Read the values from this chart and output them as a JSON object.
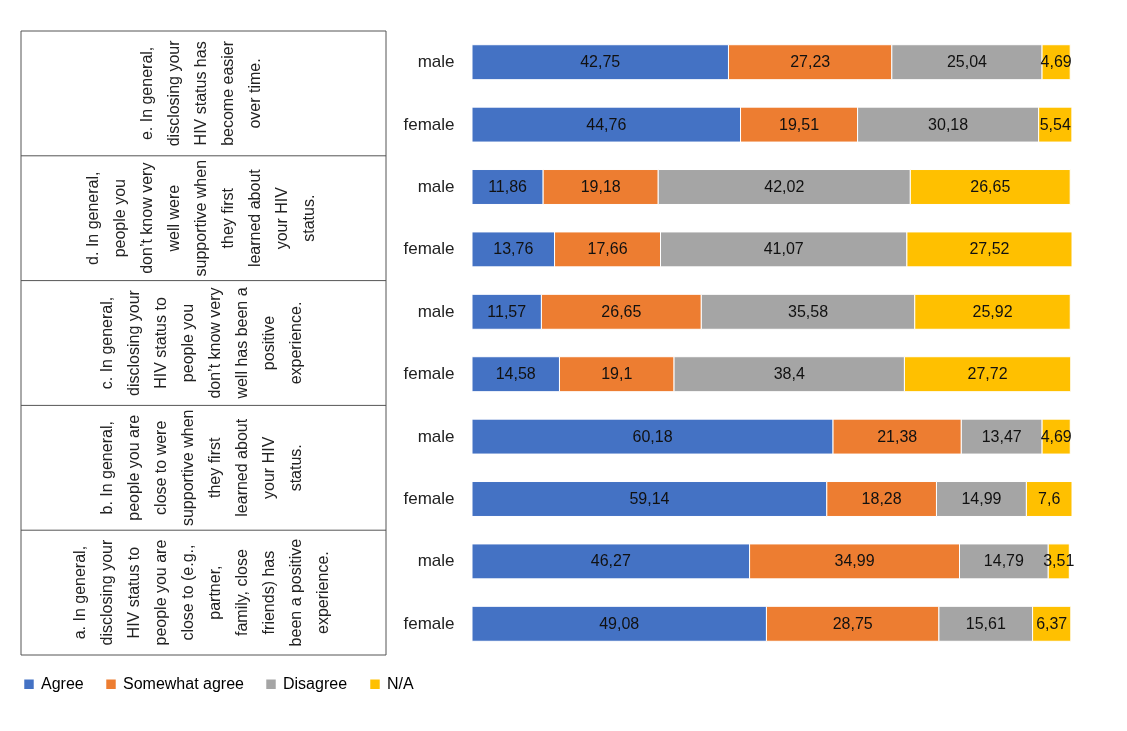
{
  "chart_data": {
    "type": "bar",
    "orientation": "horizontal",
    "stacked": true,
    "legend": "bottom",
    "categories": [
      "male",
      "female",
      "male",
      "female",
      "male",
      "female",
      "male",
      "female",
      "male",
      "female"
    ],
    "series": [
      {
        "name": "Agree",
        "color": "#4472c4",
        "values": [
          42.75,
          44.76,
          11.86,
          13.76,
          11.57,
          14.58,
          60.18,
          59.14,
          46.27,
          49.08
        ],
        "value_labels": [
          "42,75",
          "44,76",
          "11,86",
          "13,76",
          "11,57",
          "14,58",
          "60,18",
          "59,14",
          "46,27",
          "49,08"
        ]
      },
      {
        "name": "Somewhat agree",
        "color": "#ed7d31",
        "values": [
          27.23,
          19.51,
          19.18,
          17.66,
          26.65,
          19.1,
          21.38,
          18.28,
          34.99,
          28.75
        ],
        "value_labels": [
          "27,23",
          "19,51",
          "19,18",
          "17,66",
          "26,65",
          "19,1",
          "21,38",
          "18,28",
          "34,99",
          "28,75"
        ]
      },
      {
        "name": "Disagree",
        "color": "#a5a5a5",
        "values": [
          25.04,
          30.18,
          42.02,
          41.07,
          35.58,
          38.4,
          13.47,
          14.99,
          14.79,
          15.61
        ],
        "value_labels": [
          "25,04",
          "30,18",
          "42,02",
          "41,07",
          "35,58",
          "38,4",
          "13,47",
          "14,99",
          "14,79",
          "15,61"
        ]
      },
      {
        "name": "N/A",
        "color": "#ffc000",
        "values": [
          4.69,
          5.54,
          26.65,
          27.52,
          25.92,
          27.72,
          4.69,
          7.6,
          3.51,
          6.37
        ],
        "value_labels": [
          "4,69",
          "5,54",
          "26,65",
          "27,52",
          "25,92",
          "27,72",
          "4,69",
          "7,6",
          "3,51",
          "6,37"
        ]
      }
    ],
    "annotations": [
      "e. In general, disclosing your HIV status has become easier over time.",
      "d. In general, people you don’t know very well were supportive when they first learned about your HIV status.",
      "c. In general, disclosing your HIV status to people you don’t know very well has been a positive experience.",
      "b. In general, people you are close to were supportive when they first learned about your HIV status.",
      "a. In general, disclosing your HIV status to people you are close to (e.g., partner, family, close friends) has been a positive experience."
    ]
  }
}
